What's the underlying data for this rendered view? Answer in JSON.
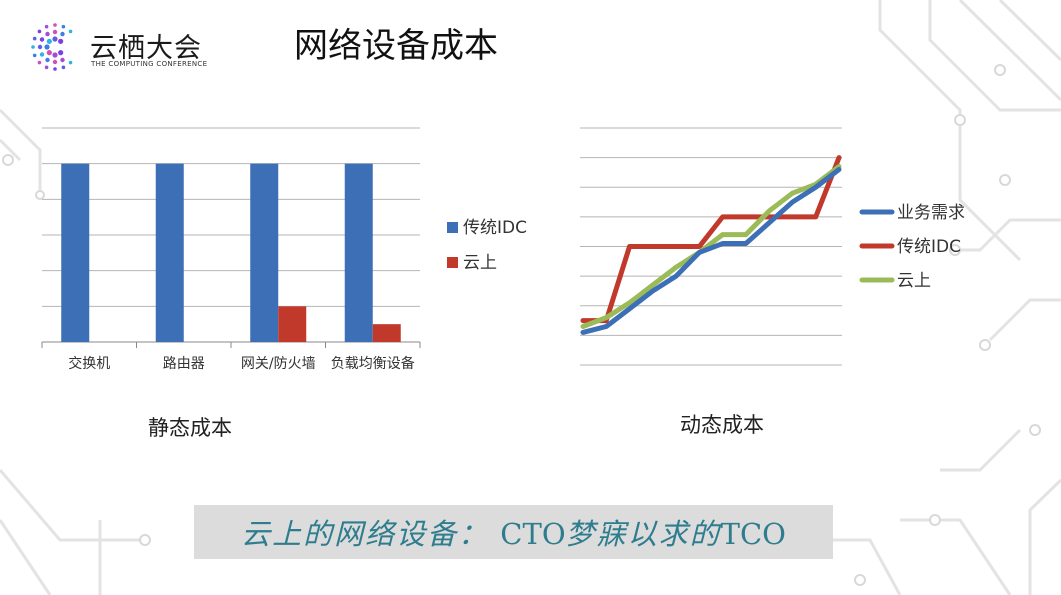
{
  "logo": {
    "name": "云栖大会",
    "subtitle": "THE COMPUTING CONFERENCE"
  },
  "page_title": "网络设备成本",
  "captions": {
    "static": "静态成本",
    "dynamic": "动态成本"
  },
  "banner": {
    "text_prefix": "云上的网络设备：",
    "text_latin1": "CTO",
    "text_middle": "梦寐以求的",
    "text_latin2": "TCO"
  },
  "colors": {
    "blue": "#3d6fb6",
    "red": "#c0392b",
    "green": "#9bbb59",
    "banner_text": "#2e7d8e"
  },
  "chart_data": [
    {
      "type": "bar",
      "title": "静态成本",
      "categories": [
        "交换机",
        "路由器",
        "网关/防火墙",
        "负载均衡设备"
      ],
      "series": [
        {
          "name": "传统IDC",
          "values": [
            100,
            100,
            100,
            100
          ],
          "color": "#3d6fb6"
        },
        {
          "name": "云上",
          "values": [
            0,
            0,
            20,
            10
          ],
          "color": "#c0392b"
        }
      ],
      "ylim": [
        0,
        120
      ],
      "grid": true,
      "legend": "right"
    },
    {
      "type": "line",
      "title": "动态成本",
      "x": [
        0,
        1,
        2,
        3,
        4,
        5,
        6,
        7,
        8,
        9,
        10,
        11
      ],
      "series": [
        {
          "name": "业务需求",
          "values": [
            1,
            3,
            9,
            15,
            20,
            28,
            31,
            31,
            38,
            45,
            50,
            56
          ],
          "color": "#3d6fb6"
        },
        {
          "name": "传统IDC",
          "values": [
            5,
            5,
            30,
            30,
            30,
            30,
            40,
            40,
            40,
            40,
            40,
            60
          ],
          "color": "#c0392b"
        },
        {
          "name": "云上",
          "values": [
            3,
            6,
            11,
            17,
            23,
            28,
            34,
            34,
            42,
            48,
            51,
            57
          ],
          "color": "#9bbb59"
        }
      ],
      "ylim": [
        -10,
        70
      ],
      "grid": true,
      "legend": "right"
    }
  ]
}
